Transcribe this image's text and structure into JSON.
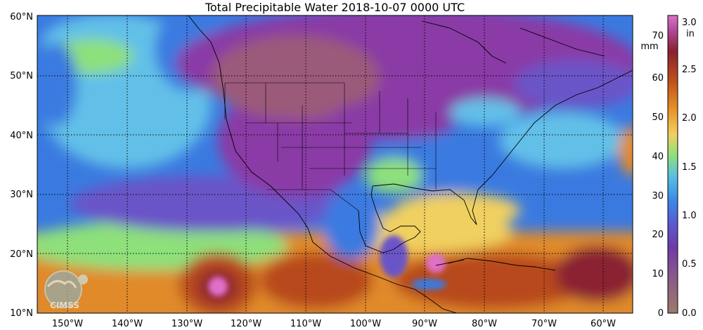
{
  "title": "Total Precipitable Water  2018-10-07 0000 UTC",
  "map": {
    "lon_range": [
      -155,
      -55
    ],
    "lat_range": [
      10,
      60
    ],
    "lat_labels": [
      "10°N",
      "20°N",
      "30°N",
      "40°N",
      "50°N",
      "60°N"
    ],
    "lon_labels": [
      "150°W",
      "140°W",
      "130°W",
      "120°W",
      "110°W",
      "100°W",
      "90°W",
      "80°W",
      "70°W",
      "60°W"
    ],
    "graticule": "dotted",
    "logo_text": "CIMSS"
  },
  "colorbar": {
    "mm_unit": "mm",
    "in_unit": "in",
    "mm_ticks": [
      "0",
      "10",
      "20",
      "30",
      "40",
      "50",
      "60",
      "70"
    ],
    "in_ticks": [
      "0.0",
      "0.5",
      "1.0",
      "1.5",
      "2.0",
      "2.5",
      "3.0"
    ],
    "mm_range": [
      0,
      76
    ]
  },
  "palette": {
    "dry_brown": "#9c7a6a",
    "purple": "#8a3aa6",
    "violet": "#6a55c8",
    "blue": "#3a7ae0",
    "cyan": "#62c0e8",
    "green": "#8ee07a",
    "yellow": "#f0d060",
    "orange": "#e08a2a",
    "rust": "#b84a1a",
    "maroon": "#8a2030",
    "pink": "#e070c8"
  }
}
